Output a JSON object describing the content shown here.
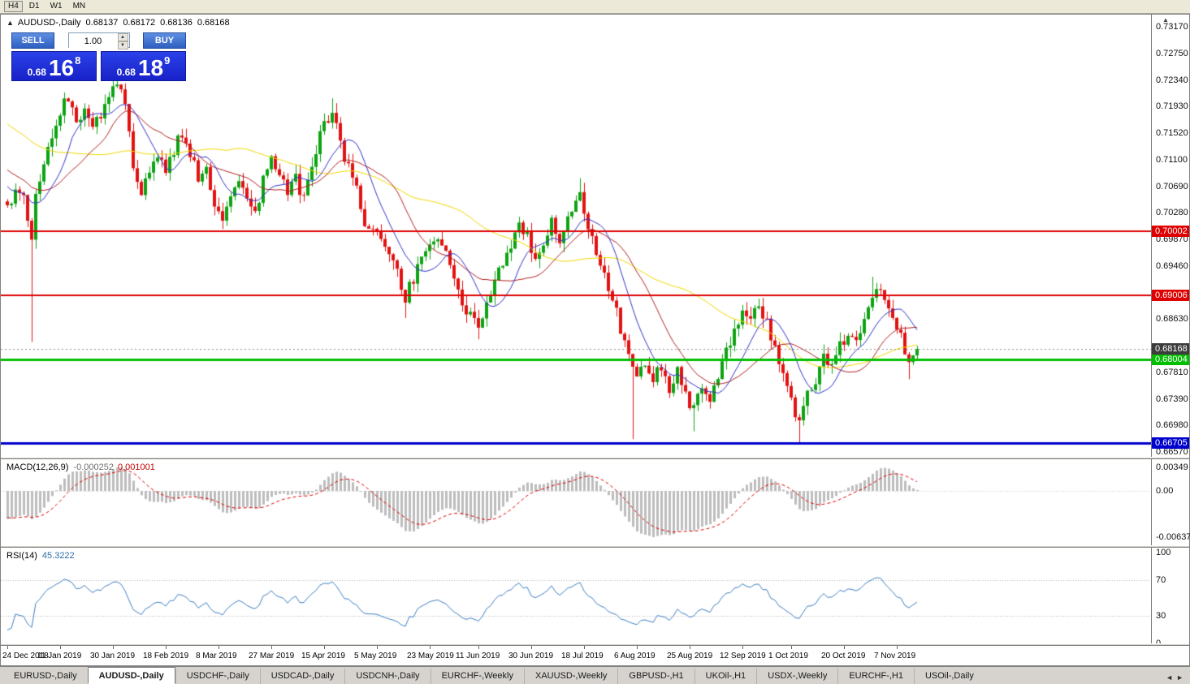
{
  "toolbar": {
    "timeframes": [
      {
        "label": "H4",
        "active": true
      },
      {
        "label": "D1",
        "active": false
      },
      {
        "label": "W1",
        "active": false
      },
      {
        "label": "MN",
        "active": false
      }
    ]
  },
  "header": {
    "collapse_icon": "▲",
    "symbol": "AUDUSD-,Daily",
    "open": "0.68137",
    "high": "0.68172",
    "low": "0.68136",
    "close": "0.68168"
  },
  "trade_panel": {
    "sell_label": "SELL",
    "buy_label": "BUY",
    "lot_value": "1.00",
    "spin_up": "▲",
    "spin_down": "▼",
    "sell_price": {
      "prefix": "0.68",
      "big": "16",
      "sup": "8"
    },
    "buy_price": {
      "prefix": "0.68",
      "big": "18",
      "sup": "9"
    }
  },
  "indicators": {
    "macd": {
      "label": "MACD(12,26,9)",
      "value": "-0.000252",
      "signal_value": "0.001001",
      "axis_max": "0.00349",
      "axis_zero": "0.00",
      "axis_min": "-0.00637"
    },
    "rsi": {
      "label": "RSI(14)",
      "value": "45.3222",
      "axis": [
        "100",
        "70",
        "30",
        "0"
      ]
    }
  },
  "tabs": {
    "items": [
      {
        "label": "EURUSD-,Daily",
        "active": false
      },
      {
        "label": "AUDUSD-,Daily",
        "active": true
      },
      {
        "label": "USDCHF-,Daily",
        "active": false
      },
      {
        "label": "USDCAD-,Daily",
        "active": false
      },
      {
        "label": "USDCNH-,Daily",
        "active": false
      },
      {
        "label": "EURCHF-,Weekly",
        "active": false
      },
      {
        "label": "XAUUSD-,Weekly",
        "active": false
      },
      {
        "label": "GBPUSD-,H1",
        "active": false
      },
      {
        "label": "UKOil-,H1",
        "active": false
      },
      {
        "label": "USDX-,Weekly",
        "active": false
      },
      {
        "label": "EURCHF-,H1",
        "active": false
      },
      {
        "label": "USOil-,Daily",
        "active": false
      }
    ],
    "scroll_left": "◄",
    "scroll_right": "►"
  },
  "chart_data": {
    "type": "candlestick",
    "title": "AUDUSD-,Daily",
    "current_price": 0.68168,
    "ohlc_header": [
      0.68137,
      0.68172,
      0.68136,
      0.68168
    ],
    "price_axis_ticks": [
      "0.73170",
      "0.72750",
      "0.72340",
      "0.71930",
      "0.71520",
      "0.71100",
      "0.70690",
      "0.70280",
      "0.69870",
      "0.69460",
      "0.68630",
      "0.67810",
      "0.67390",
      "0.66980",
      "0.66570"
    ],
    "levels": [
      {
        "price": 0.70002,
        "label": "0.70002",
        "color": "#DE0000",
        "width": 2
      },
      {
        "price": 0.69006,
        "label": "0.69006",
        "color": "#DE0000",
        "width": 2
      },
      {
        "price": 0.68004,
        "label": "0.68004",
        "color": "#00BE00",
        "width": 3
      },
      {
        "price": 0.66705,
        "label": "0.66705",
        "color": "#0000CE",
        "width": 3
      }
    ],
    "current_badge_color": "#3C3C3C",
    "date_labels": [
      {
        "text": "24 Dec 2018",
        "index": 0
      },
      {
        "text": "11 Jan 2019",
        "index": 13
      },
      {
        "text": "30 Jan 2019",
        "index": 26
      },
      {
        "text": "18 Feb 2019",
        "index": 39
      },
      {
        "text": "8 Mar 2019",
        "index": 52
      },
      {
        "text": "27 Mar 2019",
        "index": 65
      },
      {
        "text": "15 Apr 2019",
        "index": 78
      },
      {
        "text": "5 May 2019",
        "index": 91
      },
      {
        "text": "23 May 2019",
        "index": 104
      },
      {
        "text": "11 Jun 2019",
        "index": 116
      },
      {
        "text": "30 Jun 2019",
        "index": 129
      },
      {
        "text": "18 Jul 2019",
        "index": 142
      },
      {
        "text": "6 Aug 2019",
        "index": 155
      },
      {
        "text": "25 Aug 2019",
        "index": 168
      },
      {
        "text": "12 Sep 2019",
        "index": 181
      },
      {
        "text": "1 Oct 2019",
        "index": 193
      },
      {
        "text": "20 Oct 2019",
        "index": 206
      },
      {
        "text": "7 Nov 2019",
        "index": 219
      }
    ],
    "candle_count": 225,
    "price_waypoints": [
      [
        0,
        0.704
      ],
      [
        2,
        0.7062
      ],
      [
        4,
        0.7045
      ],
      [
        6,
        0.6993
      ],
      [
        7,
        0.7052
      ],
      [
        9,
        0.7105
      ],
      [
        11,
        0.7148
      ],
      [
        13,
        0.7185
      ],
      [
        15,
        0.7205
      ],
      [
        17,
        0.7168
      ],
      [
        19,
        0.7198
      ],
      [
        21,
        0.7158
      ],
      [
        23,
        0.7185
      ],
      [
        25,
        0.7205
      ],
      [
        27,
        0.7232
      ],
      [
        29,
        0.7195
      ],
      [
        31,
        0.7098
      ],
      [
        33,
        0.7065
      ],
      [
        35,
        0.7095
      ],
      [
        37,
        0.712
      ],
      [
        39,
        0.7094
      ],
      [
        41,
        0.7125
      ],
      [
        43,
        0.7152
      ],
      [
        45,
        0.7115
      ],
      [
        47,
        0.7086
      ],
      [
        49,
        0.71
      ],
      [
        51,
        0.7046
      ],
      [
        53,
        0.702
      ],
      [
        55,
        0.706
      ],
      [
        57,
        0.7086
      ],
      [
        59,
        0.705
      ],
      [
        61,
        0.7024
      ],
      [
        63,
        0.7076
      ],
      [
        65,
        0.7112
      ],
      [
        67,
        0.709
      ],
      [
        69,
        0.706
      ],
      [
        71,
        0.7083
      ],
      [
        73,
        0.705
      ],
      [
        75,
        0.71
      ],
      [
        77,
        0.7145
      ],
      [
        79,
        0.7175
      ],
      [
        80,
        0.719
      ],
      [
        82,
        0.7136
      ],
      [
        84,
        0.7096
      ],
      [
        86,
        0.706
      ],
      [
        88,
        0.7016
      ],
      [
        90,
        0.7
      ],
      [
        92,
        0.6986
      ],
      [
        94,
        0.696
      ],
      [
        96,
        0.6933
      ],
      [
        98,
        0.6896
      ],
      [
        100,
        0.6926
      ],
      [
        102,
        0.696
      ],
      [
        104,
        0.6983
      ],
      [
        106,
        0.6993
      ],
      [
        108,
        0.696
      ],
      [
        110,
        0.6926
      ],
      [
        112,
        0.6893
      ],
      [
        114,
        0.6866
      ],
      [
        116,
        0.6856
      ],
      [
        118,
        0.689
      ],
      [
        120,
        0.6923
      ],
      [
        122,
        0.695
      ],
      [
        124,
        0.6983
      ],
      [
        126,
        0.7006
      ],
      [
        128,
        0.699
      ],
      [
        130,
        0.696
      ],
      [
        132,
        0.6986
      ],
      [
        134,
        0.7012
      ],
      [
        136,
        0.699
      ],
      [
        138,
        0.702
      ],
      [
        140,
        0.705
      ],
      [
        141,
        0.706
      ],
      [
        143,
        0.7013
      ],
      [
        145,
        0.6973
      ],
      [
        147,
        0.693
      ],
      [
        149,
        0.689
      ],
      [
        151,
        0.685
      ],
      [
        153,
        0.68
      ],
      [
        155,
        0.677
      ],
      [
        157,
        0.6796
      ],
      [
        159,
        0.677
      ],
      [
        161,
        0.6793
      ],
      [
        163,
        0.6756
      ],
      [
        165,
        0.678
      ],
      [
        167,
        0.675
      ],
      [
        169,
        0.672
      ],
      [
        171,
        0.6756
      ],
      [
        173,
        0.673
      ],
      [
        175,
        0.677
      ],
      [
        177,
        0.681
      ],
      [
        179,
        0.6846
      ],
      [
        181,
        0.688
      ],
      [
        183,
        0.686
      ],
      [
        185,
        0.689
      ],
      [
        187,
        0.6856
      ],
      [
        189,
        0.682
      ],
      [
        191,
        0.677
      ],
      [
        193,
        0.674
      ],
      [
        195,
        0.6703
      ],
      [
        197,
        0.6746
      ],
      [
        199,
        0.677
      ],
      [
        201,
        0.681
      ],
      [
        203,
        0.6786
      ],
      [
        205,
        0.682
      ],
      [
        207,
        0.6846
      ],
      [
        209,
        0.683
      ],
      [
        211,
        0.6866
      ],
      [
        213,
        0.6903
      ],
      [
        215,
        0.691
      ],
      [
        217,
        0.6883
      ],
      [
        219,
        0.6856
      ],
      [
        221,
        0.6816
      ],
      [
        222,
        0.679
      ],
      [
        224,
        0.68168
      ]
    ],
    "wick_spikes": [
      [
        6,
        null,
        0.6828
      ],
      [
        27,
        0.725,
        null
      ],
      [
        53,
        null,
        0.7003
      ],
      [
        80,
        0.7206,
        null
      ],
      [
        98,
        null,
        0.6865
      ],
      [
        116,
        null,
        0.6832
      ],
      [
        141,
        0.7082,
        null
      ],
      [
        154,
        null,
        0.6677
      ],
      [
        169,
        null,
        0.6689
      ],
      [
        185,
        0.6895,
        null
      ],
      [
        195,
        null,
        0.667
      ],
      [
        213,
        0.6929,
        null
      ],
      [
        222,
        null,
        0.677
      ]
    ],
    "pre_history_trend": [
      0.729,
      0.7055
    ],
    "moving_averages": [
      {
        "period": 10,
        "color": "#3232C8"
      },
      {
        "period": 20,
        "color": "#B22222"
      },
      {
        "period": 50,
        "color": "#EED800"
      }
    ],
    "up_color": "#0EA313",
    "down_color": "#E31212",
    "macd_colors": {
      "histogram": "#BDBDBD",
      "signal": "#E00000"
    },
    "rsi_color": "#3E7FC1",
    "rsi_levels": [
      70,
      30
    ],
    "macd_params": [
      12,
      26,
      9
    ],
    "rsi_period": 14
  }
}
